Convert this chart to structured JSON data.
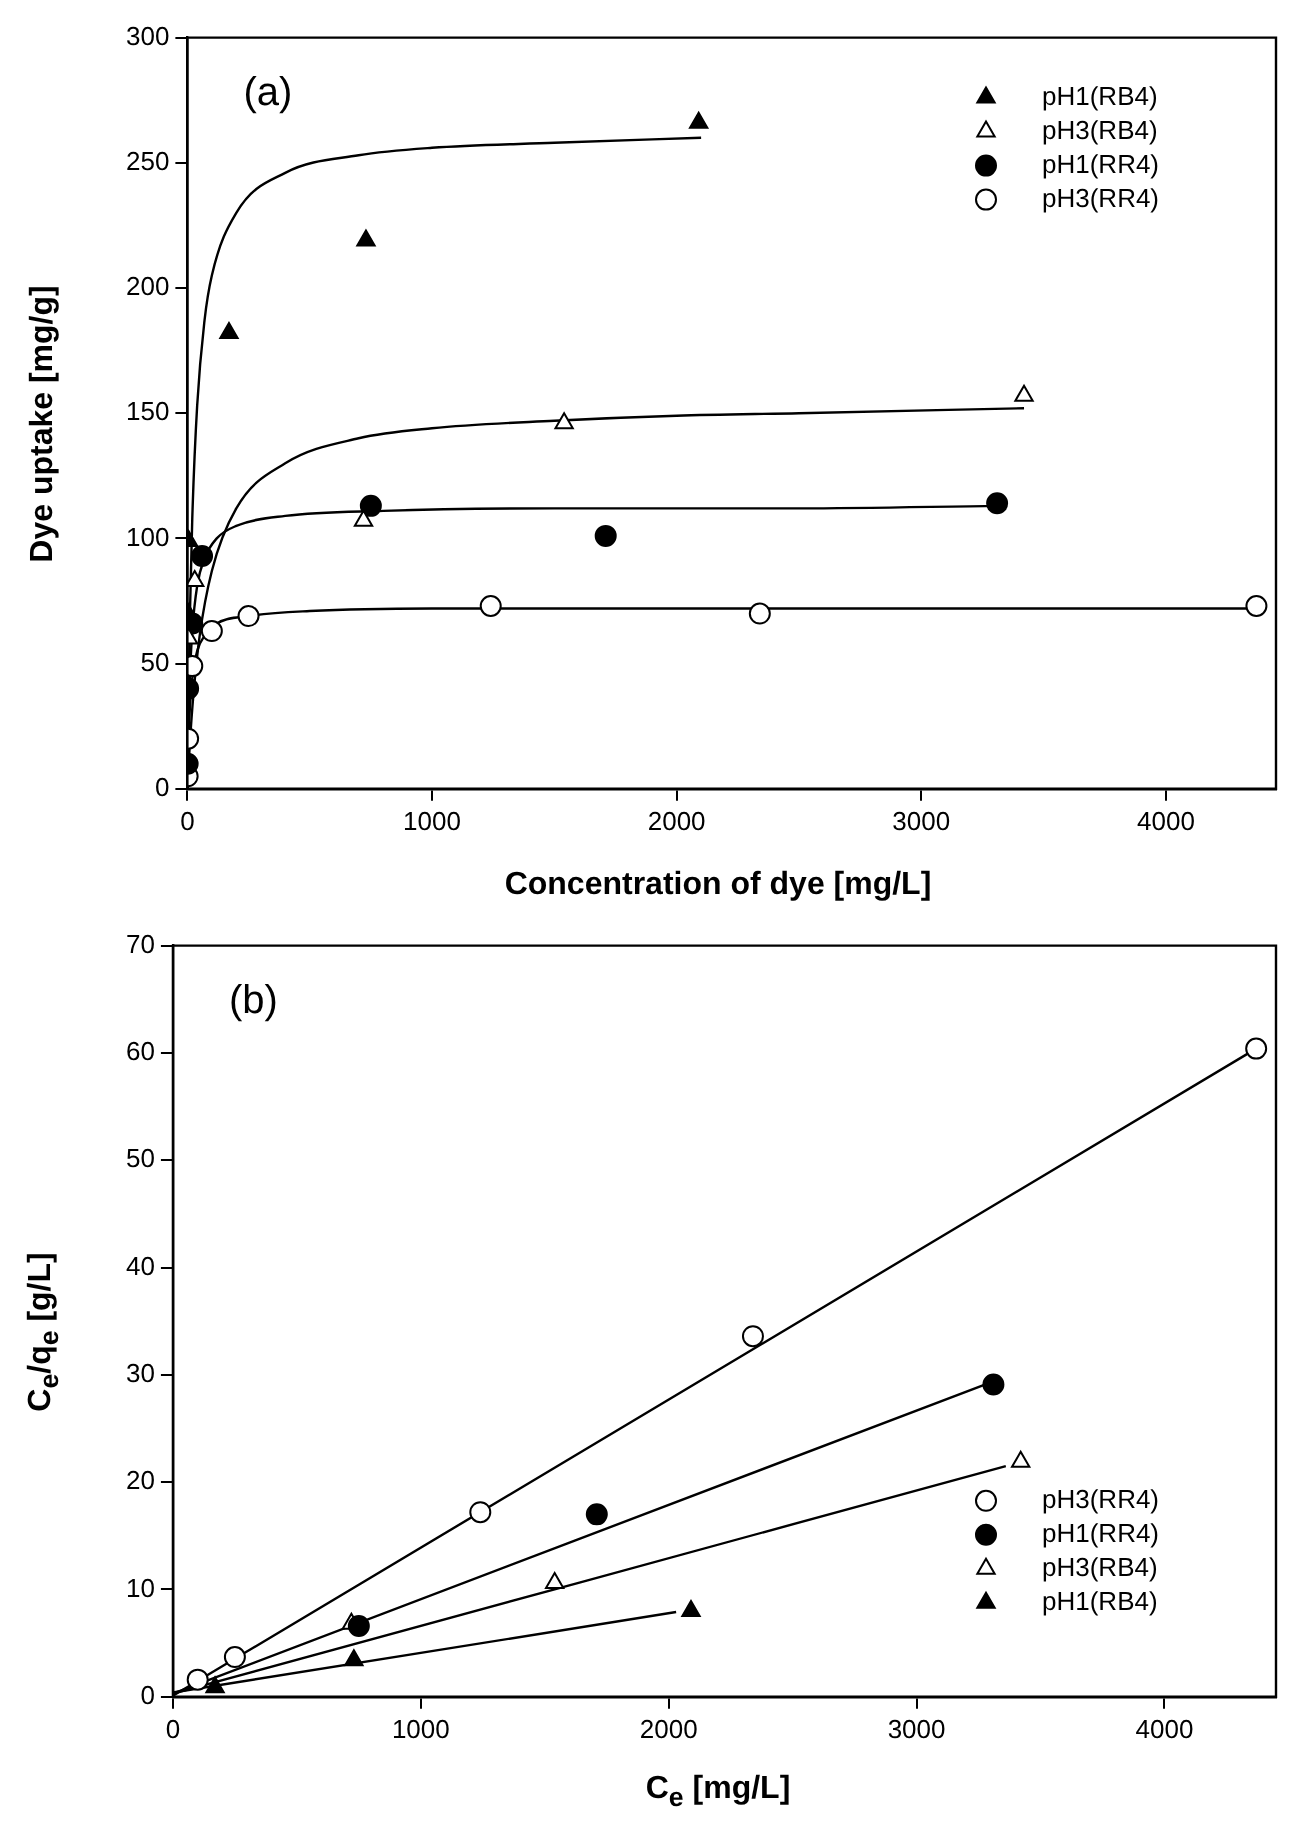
{
  "chart_data": [
    {
      "type": "scatter",
      "xlabel": "Concentration of dye [mg/L]",
      "ylabel": "Dye uptake [mg/g]",
      "annotations": [
        "(a)"
      ],
      "xlim": [
        0,
        4450
      ],
      "xticks": [
        0,
        1000,
        2000,
        3000,
        4000
      ],
      "ylim": [
        0,
        300
      ],
      "yticks": [
        0,
        50,
        100,
        150,
        200,
        250,
        300
      ],
      "grid": false,
      "legend": "top right",
      "series": [
        {
          "name": "pH1(RB4)",
          "color": "#000000",
          "marker": "triangle",
          "x": [
            2,
            5,
            170,
            730,
            2090
          ],
          "values": [
            70,
            99,
            182,
            219,
            266
          ]
        },
        {
          "name": "pH3(RB4)",
          "color": "#ffffff",
          "marker": "triangle",
          "x": [
            5,
            30,
            720,
            1540,
            3420
          ],
          "values": [
            60,
            83,
            107,
            146,
            157
          ]
        },
        {
          "name": "pH1(RR4)",
          "color": "#000000",
          "marker": "circle",
          "x": [
            1,
            3,
            20,
            60,
            750,
            1710,
            3310
          ],
          "values": [
            10,
            40,
            66,
            93,
            113,
            101,
            114
          ]
        },
        {
          "name": "pH3(RR4)",
          "color": "#ffffff",
          "marker": "circle",
          "x": [
            1,
            3,
            20,
            100,
            250,
            1240,
            2340,
            4370
          ],
          "values": [
            5,
            20,
            49,
            63,
            69,
            73,
            70,
            73
          ]
        },
        {
          "type": "line",
          "color": "#000000",
          "marker": "none",
          "line_style": "solid",
          "x": [
            0,
            5,
            10,
            20,
            40,
            70,
            100,
            200,
            400,
            700,
            1000,
            1500,
            2100
          ],
          "values": [
            0,
            39,
            68,
            108,
            153,
            187,
            205,
            230,
            246,
            253,
            256,
            258,
            260
          ]
        },
        {
          "type": "line",
          "color": "#000000",
          "marker": "none",
          "line_style": "solid",
          "x": [
            0,
            10,
            25,
            50,
            100,
            200,
            400,
            700,
            1000,
            1500,
            2000,
            2500,
            3420
          ],
          "values": [
            0,
            18,
            38,
            61,
            87,
            112,
            130,
            140,
            144,
            147,
            149,
            150,
            152
          ]
        },
        {
          "type": "line",
          "color": "#000000",
          "marker": "none",
          "line_style": "solid",
          "x": [
            0,
            5,
            10,
            20,
            40,
            70,
            120,
            200,
            400,
            800,
            1500,
            2500,
            3310
          ],
          "values": [
            0,
            27,
            44,
            63,
            81,
            92,
            100,
            105,
            109,
            111,
            112,
            112,
            113
          ]
        },
        {
          "type": "line",
          "color": "#000000",
          "marker": "none",
          "line_style": "solid",
          "x": [
            0,
            5,
            10,
            20,
            40,
            70,
            120,
            250,
            500,
            1000,
            2000,
            3000,
            4370
          ],
          "values": [
            0,
            21,
            32,
            44,
            55,
            61,
            66,
            69,
            71,
            72,
            72,
            72,
            72
          ]
        }
      ]
    },
    {
      "type": "scatter",
      "xlabel": "C$_{e}$ [mg/L]",
      "ylabel": "C$_{e}$/q$_{e}$ [g/L]",
      "annotations": [
        "(b)"
      ],
      "xlim": [
        0,
        4450
      ],
      "xticks": [
        0,
        1000,
        2000,
        3000,
        4000
      ],
      "ylim": [
        0,
        70
      ],
      "yticks": [
        0,
        10,
        20,
        30,
        40,
        50,
        60,
        70
      ],
      "grid": false,
      "legend": "bottom right",
      "series": [
        {
          "name": "pH3(RR4)",
          "color": "#ffffff",
          "marker": "circle",
          "x": [
            100,
            250,
            1240,
            2340,
            4370
          ],
          "values": [
            1.6,
            3.7,
            17.2,
            33.6,
            60.4
          ]
        },
        {
          "name": "pH1(RR4)",
          "color": "#000000",
          "marker": "circle",
          "x": [
            750,
            1710,
            3310
          ],
          "values": [
            6.6,
            17,
            29.1
          ]
        },
        {
          "name": "pH3(RB4)",
          "color": "#ffffff",
          "marker": "triangle",
          "x": [
            720,
            1540,
            3420
          ],
          "values": [
            6.8,
            10.6,
            21.9
          ]
        },
        {
          "name": "pH1(RB4)",
          "color": "#000000",
          "marker": "triangle",
          "x": [
            170,
            730,
            2090
          ],
          "values": [
            0.9,
            3.4,
            8
          ]
        },
        {
          "type": "line",
          "color": "#000000",
          "marker": "none",
          "line_style": "solid",
          "x": [
            0,
            4370
          ],
          "values": [
            0.1,
            60.4
          ]
        },
        {
          "type": "line",
          "color": "#000000",
          "marker": "none",
          "line_style": "solid",
          "x": [
            0,
            3310
          ],
          "values": [
            0.3,
            29.4
          ]
        },
        {
          "type": "line",
          "color": "#000000",
          "marker": "none",
          "line_style": "solid",
          "x": [
            0,
            3360
          ],
          "values": [
            0.3,
            21.5
          ]
        },
        {
          "type": "line",
          "color": "#000000",
          "marker": "none",
          "line_style": "solid",
          "x": [
            0,
            2030
          ],
          "values": [
            0.4,
            7.9
          ]
        }
      ]
    }
  ]
}
